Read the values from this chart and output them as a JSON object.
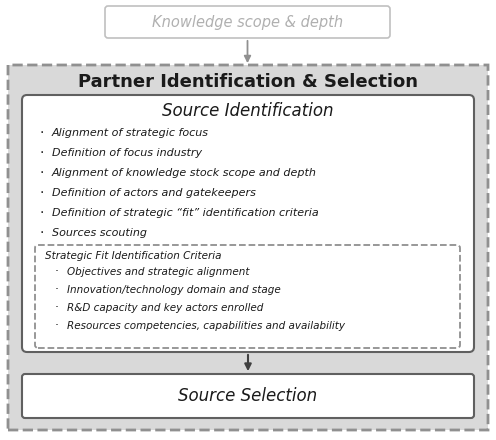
{
  "title_top": "Knowledge scope & depth",
  "title_partner": "Partner Identification & Selection",
  "title_source_id": "Source Identification",
  "bullets_main": [
    "Alignment of strategic focus",
    "Definition of focus industry",
    "Alignment of knowledge stock scope and depth",
    "Definition of actors and gatekeepers",
    "Definition of strategic “fit” identification criteria",
    "Sources scouting"
  ],
  "title_criteria": "Strategic Fit Identification Criteria",
  "bullets_criteria": [
    "Objectives and strategic alignment",
    "Innovation/technology domain and stage",
    "R&D capacity and key actors enrolled",
    "Resources competencies, capabilities and availability"
  ],
  "title_source_sel": "Source Selection",
  "bg_outer": "#d9d9d9",
  "bg_white": "#ffffff",
  "color_text_gray": "#b0b0b0",
  "color_text_dark": "#1a1a1a",
  "color_border_dark": "#505050",
  "color_border_dashed": "#909090"
}
